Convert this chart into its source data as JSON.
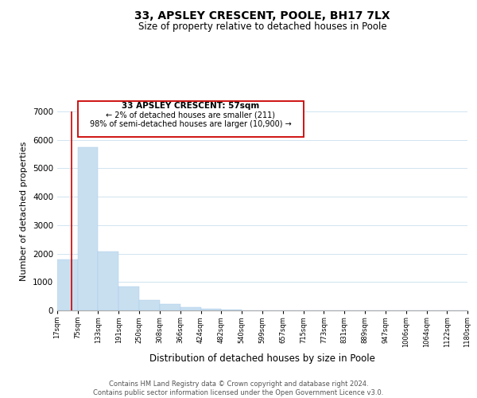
{
  "title": "33, APSLEY CRESCENT, POOLE, BH17 7LX",
  "subtitle": "Size of property relative to detached houses in Poole",
  "xlabel": "Distribution of detached houses by size in Poole",
  "ylabel": "Number of detached properties",
  "bar_color": "#c8dff0",
  "bar_edge_color": "#a8c8e8",
  "highlight_color": "#cc0000",
  "background_color": "#ffffff",
  "grid_color": "#d0e4f0",
  "ylim": [
    0,
    7000
  ],
  "yticks": [
    0,
    1000,
    2000,
    3000,
    4000,
    5000,
    6000,
    7000
  ],
  "bin_edges": [
    17,
    75,
    133,
    191,
    250,
    308,
    366,
    424,
    482,
    540,
    599,
    657,
    715,
    773,
    831,
    889,
    947,
    1006,
    1064,
    1122,
    1180
  ],
  "bar_heights": [
    1780,
    5740,
    2060,
    840,
    375,
    230,
    105,
    60,
    25,
    10,
    5,
    3,
    2,
    0,
    0,
    0,
    0,
    0,
    0,
    0
  ],
  "tick_labels": [
    "17sqm",
    "75sqm",
    "133sqm",
    "191sqm",
    "250sqm",
    "308sqm",
    "366sqm",
    "424sqm",
    "482sqm",
    "540sqm",
    "599sqm",
    "657sqm",
    "715sqm",
    "773sqm",
    "831sqm",
    "889sqm",
    "947sqm",
    "1006sqm",
    "1064sqm",
    "1122sqm",
    "1180sqm"
  ],
  "property_sqm": 57,
  "annotation_line1": "33 APSLEY CRESCENT: 57sqm",
  "annotation_line2": "← 2% of detached houses are smaller (211)",
  "annotation_line3": "98% of semi-detached houses are larger (10,900) →",
  "footer_line1": "Contains HM Land Registry data © Crown copyright and database right 2024.",
  "footer_line2": "Contains public sector information licensed under the Open Government Licence v3.0."
}
